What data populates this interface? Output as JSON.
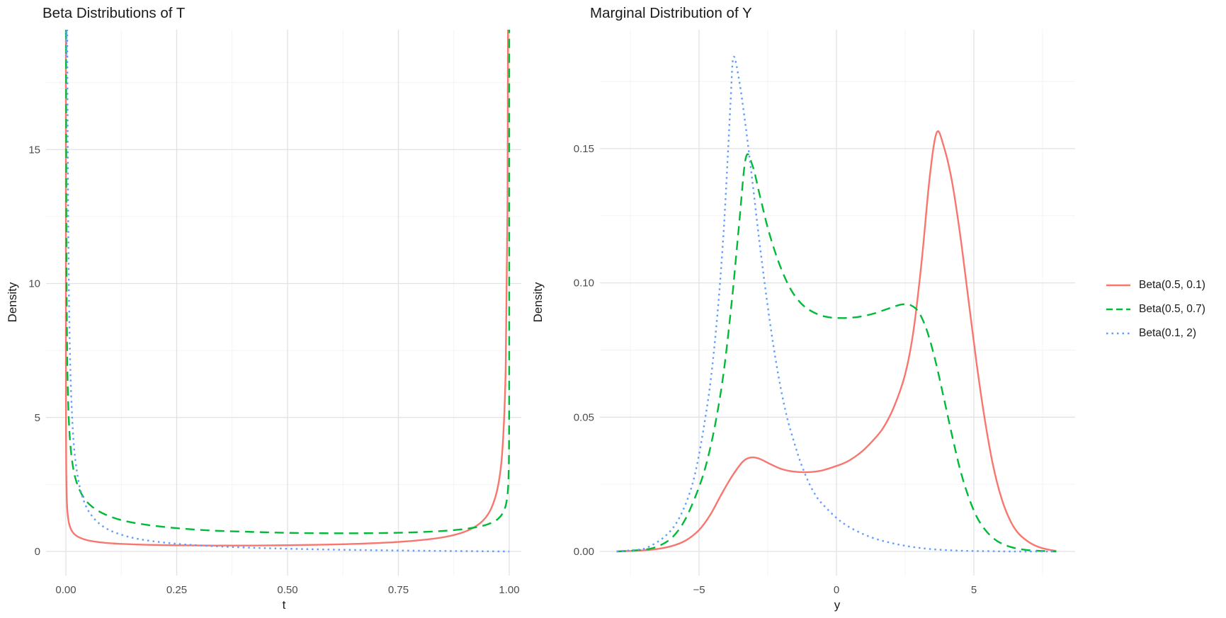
{
  "palette": {
    "red": "#F8766D",
    "green": "#00BA38",
    "blue": "#619CFF",
    "grid_major": "#E2E2E2",
    "grid_minor": "#F0F0F0",
    "tick_label": "#4D4D4D",
    "text": "#1A1A1A",
    "background": "#FFFFFF"
  },
  "legend": {
    "position": "right",
    "items": [
      {
        "label": "Beta(0.5, 0.1)",
        "color": "#F8766D",
        "linetype": "solid"
      },
      {
        "label": "Beta(0.5, 0.7)",
        "color": "#00BA38",
        "linetype": "dashed"
      },
      {
        "label": "Beta(0.1, 2)",
        "color": "#619CFF",
        "linetype": "dotted"
      }
    ]
  },
  "chart_data": [
    {
      "type": "line",
      "title": "Beta Distributions of T",
      "xlabel": "t",
      "ylabel": "Density",
      "xlim": [
        -0.045,
        1.027
      ],
      "ylim": [
        -0.87,
        19.47
      ],
      "grid": true,
      "legend_position": "none",
      "xticks": {
        "values": [
          0,
          0.25,
          0.5,
          0.75,
          1.0
        ],
        "labels": [
          "0.00",
          "0.25",
          "0.50",
          "0.75",
          "1.00"
        ]
      },
      "yticks": {
        "values": [
          0,
          5,
          10,
          15
        ],
        "labels": [
          "0",
          "5",
          "10",
          "15"
        ]
      },
      "xminor": [
        0.125,
        0.375,
        0.625,
        0.875
      ],
      "yminor": [
        2.5,
        7.5,
        12.5,
        17.5
      ],
      "series": [
        {
          "name": "Beta(0.5, 0.1)",
          "color": "#F8766D",
          "linetype": "solid",
          "points": [
            [
              2e-06,
              62
            ],
            [
              1e-05,
              27.9
            ],
            [
              0.0001,
              8.84
            ],
            [
              0.0003,
              5.11
            ],
            [
              0.0006,
              3.61
            ],
            [
              0.001,
              2.8
            ],
            [
              0.002,
              1.98
            ],
            [
              0.004,
              1.4
            ],
            [
              0.008,
              0.99
            ],
            [
              0.015,
              0.73
            ],
            [
              0.025,
              0.57
            ],
            [
              0.04,
              0.46
            ],
            [
              0.06,
              0.38
            ],
            [
              0.09,
              0.32
            ],
            [
              0.13,
              0.28
            ],
            [
              0.18,
              0.25
            ],
            [
              0.25,
              0.23
            ],
            [
              0.33,
              0.22
            ],
            [
              0.42,
              0.22
            ],
            [
              0.5,
              0.233
            ],
            [
              0.58,
              0.253
            ],
            [
              0.67,
              0.293
            ],
            [
              0.75,
              0.355
            ],
            [
              0.82,
              0.457
            ],
            [
              0.87,
              0.593
            ],
            [
              0.91,
              0.808
            ],
            [
              0.94,
              1.14
            ],
            [
              0.96,
              1.63
            ],
            [
              0.975,
              2.47
            ],
            [
              0.985,
              3.9
            ],
            [
              0.992,
              6.86
            ],
            [
              0.996,
              12.78
            ],
            [
              0.998,
              23.8
            ],
            [
              0.999,
              44.3
            ],
            [
              0.9995,
              80
            ]
          ]
        },
        {
          "name": "Beta(0.5, 0.7)",
          "color": "#00BA38",
          "linetype": "dashed",
          "points": [
            [
              1e-05,
              126
            ],
            [
              0.0001,
              39.9
            ],
            [
              0.0003,
              23.0
            ],
            [
              0.001,
              12.62
            ],
            [
              0.002,
              8.92
            ],
            [
              0.004,
              6.31
            ],
            [
              0.008,
              4.47
            ],
            [
              0.015,
              3.27
            ],
            [
              0.025,
              2.54
            ],
            [
              0.04,
              2.02
            ],
            [
              0.06,
              1.66
            ],
            [
              0.09,
              1.37
            ],
            [
              0.13,
              1.15
            ],
            [
              0.18,
              1.0
            ],
            [
              0.25,
              0.87
            ],
            [
              0.33,
              0.78
            ],
            [
              0.42,
              0.73
            ],
            [
              0.5,
              0.695
            ],
            [
              0.58,
              0.68
            ],
            [
              0.67,
              0.68
            ],
            [
              0.75,
              0.698
            ],
            [
              0.82,
              0.737
            ],
            [
              0.87,
              0.789
            ],
            [
              0.91,
              0.862
            ],
            [
              0.94,
              0.957
            ],
            [
              0.96,
              1.07
            ],
            [
              0.975,
              1.22
            ],
            [
              0.985,
              1.42
            ],
            [
              0.992,
              1.71
            ],
            [
              0.996,
              2.1
            ],
            [
              0.998,
              2.58
            ],
            [
              0.999,
              3.17
            ],
            [
              0.9995,
              3.9
            ],
            [
              0.9999,
              6.32
            ],
            [
              0.99999,
              12.6
            ],
            [
              0.999999,
              22
            ]
          ]
        },
        {
          "name": "Beta(0.1, 2)",
          "color": "#619CFF",
          "linetype": "dotted",
          "points": [
            [
              0.0001,
              438
            ],
            [
              0.001,
              55.0
            ],
            [
              0.002,
              29.5
            ],
            [
              0.004,
              15.77
            ],
            [
              0.008,
              8.42
            ],
            [
              0.015,
              4.74
            ],
            [
              0.025,
              2.97
            ],
            [
              0.04,
              1.91
            ],
            [
              0.06,
              1.3
            ],
            [
              0.09,
              0.87
            ],
            [
              0.13,
              0.6
            ],
            [
              0.18,
              0.42
            ],
            [
              0.25,
              0.287
            ],
            [
              0.33,
              0.2
            ],
            [
              0.42,
              0.139
            ],
            [
              0.5,
              0.103
            ],
            [
              0.58,
              0.075
            ],
            [
              0.67,
              0.052
            ],
            [
              0.75,
              0.036
            ],
            [
              0.82,
              0.024
            ],
            [
              0.87,
              0.016
            ],
            [
              0.91,
              0.011
            ],
            [
              0.94,
              0.007
            ],
            [
              0.96,
              0.005
            ],
            [
              0.98,
              0.002
            ],
            [
              1.0,
              0
            ]
          ]
        }
      ]
    },
    {
      "type": "line",
      "title": "Marginal Distribution of Y",
      "xlabel": "y",
      "ylabel": "Density",
      "xlim": [
        -8.6,
        8.68
      ],
      "ylim": [
        -0.0087,
        0.1944
      ],
      "grid": true,
      "legend_position": "right",
      "xticks": {
        "values": [
          -5,
          0,
          5
        ],
        "labels": [
          "−5",
          "0",
          "5"
        ]
      },
      "yticks": {
        "values": [
          0,
          0.05,
          0.1,
          0.15
        ],
        "labels": [
          "0.00",
          "0.05",
          "0.10",
          "0.15"
        ]
      },
      "xminor": [
        -7.5,
        -2.5,
        2.5,
        7.5
      ],
      "yminor": [
        0.025,
        0.075,
        0.125,
        0.175
      ],
      "series": [
        {
          "name": "Beta(0.5, 0.1)",
          "color": "#F8766D",
          "linetype": "solid",
          "points": [
            [
              -8,
              0
            ],
            [
              -7.2,
              0.0003
            ],
            [
              -6.6,
              0.0008
            ],
            [
              -6,
              0.002
            ],
            [
              -5.5,
              0.004
            ],
            [
              -5,
              0.008
            ],
            [
              -4.6,
              0.0135
            ],
            [
              -4.2,
              0.021
            ],
            [
              -3.8,
              0.028
            ],
            [
              -3.4,
              0.0335
            ],
            [
              -3.1,
              0.035
            ],
            [
              -2.8,
              0.0345
            ],
            [
              -2.4,
              0.0325
            ],
            [
              -2,
              0.0307
            ],
            [
              -1.6,
              0.0298
            ],
            [
              -1.1,
              0.0295
            ],
            [
              -0.6,
              0.03
            ],
            [
              -0.1,
              0.0315
            ],
            [
              0.4,
              0.0335
            ],
            [
              0.9,
              0.037
            ],
            [
              1.3,
              0.041
            ],
            [
              1.7,
              0.046
            ],
            [
              2.1,
              0.054
            ],
            [
              2.5,
              0.066
            ],
            [
              2.8,
              0.082
            ],
            [
              3.1,
              0.108
            ],
            [
              3.4,
              0.14
            ],
            [
              3.65,
              0.156
            ],
            [
              3.9,
              0.151
            ],
            [
              4.2,
              0.138
            ],
            [
              4.5,
              0.118
            ],
            [
              4.8,
              0.094
            ],
            [
              5.1,
              0.07
            ],
            [
              5.4,
              0.049
            ],
            [
              5.7,
              0.032
            ],
            [
              6,
              0.02
            ],
            [
              6.3,
              0.012
            ],
            [
              6.6,
              0.007
            ],
            [
              7,
              0.0035
            ],
            [
              7.4,
              0.0015
            ],
            [
              7.8,
              0.0005
            ],
            [
              8,
              0.0002
            ]
          ]
        },
        {
          "name": "Beta(0.5, 0.7)",
          "color": "#00BA38",
          "linetype": "dashed",
          "points": [
            [
              -8,
              0
            ],
            [
              -7.2,
              0.0005
            ],
            [
              -6.6,
              0.0015
            ],
            [
              -6,
              0.005
            ],
            [
              -5.5,
              0.012
            ],
            [
              -5,
              0.024
            ],
            [
              -4.7,
              0.034
            ],
            [
              -4.4,
              0.048
            ],
            [
              -4.1,
              0.067
            ],
            [
              -3.8,
              0.094
            ],
            [
              -3.55,
              0.121
            ],
            [
              -3.3,
              0.1465
            ],
            [
              -3.05,
              0.1435
            ],
            [
              -2.8,
              0.133
            ],
            [
              -2.5,
              0.1205
            ],
            [
              -2.2,
              0.1105
            ],
            [
              -1.9,
              0.1025
            ],
            [
              -1.6,
              0.0965
            ],
            [
              -1.3,
              0.0925
            ],
            [
              -1,
              0.09
            ],
            [
              -0.6,
              0.088
            ],
            [
              -0.2,
              0.0871
            ],
            [
              0.2,
              0.0869
            ],
            [
              0.6,
              0.0871
            ],
            [
              1,
              0.0877
            ],
            [
              1.4,
              0.0887
            ],
            [
              1.8,
              0.0901
            ],
            [
              2.1,
              0.0912
            ],
            [
              2.4,
              0.092
            ],
            [
              2.7,
              0.0917
            ],
            [
              3,
              0.089
            ],
            [
              3.3,
              0.082
            ],
            [
              3.6,
              0.071
            ],
            [
              3.9,
              0.0575
            ],
            [
              4.2,
              0.0435
            ],
            [
              4.5,
              0.0305
            ],
            [
              4.8,
              0.0205
            ],
            [
              5.1,
              0.013
            ],
            [
              5.4,
              0.0082
            ],
            [
              5.7,
              0.005
            ],
            [
              6,
              0.003
            ],
            [
              6.4,
              0.0015
            ],
            [
              6.8,
              0.0007
            ],
            [
              7.2,
              0.0003
            ],
            [
              8,
              0
            ]
          ]
        },
        {
          "name": "Beta(0.1, 2)",
          "color": "#619CFF",
          "linetype": "dotted",
          "points": [
            [
              -8,
              0
            ],
            [
              -7.4,
              0.0005
            ],
            [
              -7,
              0.001
            ],
            [
              -6.6,
              0.003
            ],
            [
              -6.2,
              0.006
            ],
            [
              -5.8,
              0.011
            ],
            [
              -5.4,
              0.02
            ],
            [
              -5.1,
              0.031
            ],
            [
              -4.8,
              0.048
            ],
            [
              -4.55,
              0.066
            ],
            [
              -4.3,
              0.092
            ],
            [
              -4.1,
              0.12
            ],
            [
              -3.95,
              0.148
            ],
            [
              -3.85,
              0.168
            ],
            [
              -3.75,
              0.184
            ],
            [
              -3.55,
              0.176
            ],
            [
              -3.3,
              0.158
            ],
            [
              -3.05,
              0.137
            ],
            [
              -2.8,
              0.115
            ],
            [
              -2.55,
              0.095
            ],
            [
              -2.3,
              0.077
            ],
            [
              -2.05,
              0.062
            ],
            [
              -1.8,
              0.05
            ],
            [
              -1.55,
              0.041
            ],
            [
              -1.3,
              0.033
            ],
            [
              -1,
              0.0255
            ],
            [
              -0.7,
              0.02
            ],
            [
              -0.4,
              0.0165
            ],
            [
              0,
              0.0125
            ],
            [
              0.4,
              0.0095
            ],
            [
              0.9,
              0.0068
            ],
            [
              1.4,
              0.0048
            ],
            [
              1.9,
              0.0034
            ],
            [
              2.4,
              0.0023
            ],
            [
              2.9,
              0.0015
            ],
            [
              3.4,
              0.0009
            ],
            [
              4,
              0.0005
            ],
            [
              4.8,
              0.0002
            ],
            [
              5.6,
              0.0001
            ],
            [
              6.5,
              0
            ],
            [
              8,
              0
            ]
          ]
        }
      ]
    }
  ]
}
